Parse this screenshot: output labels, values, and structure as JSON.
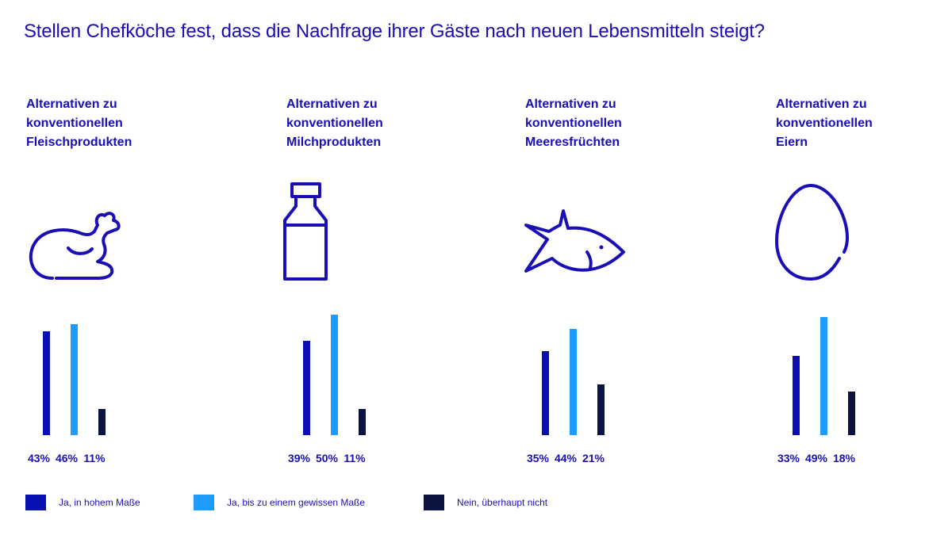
{
  "title": "Stellen Chefköche fest, dass die Nachfrage ihrer Gäste nach neuen Lebensmitteln steigt?",
  "colors": {
    "high": "#0a0fb4",
    "some": "#1e9bff",
    "none": "#0b1440",
    "icon": "#1a0fb4"
  },
  "legend": [
    {
      "label": "Ja, in hohem Maße",
      "color_key": "high"
    },
    {
      "label": "Ja, bis zu einem gewissen Maße",
      "color_key": "some"
    },
    {
      "label": "Nein, überhaupt nicht",
      "color_key": "none"
    }
  ],
  "chart_data": {
    "type": "bar",
    "title": "Stellen Chefköche fest, dass die Nachfrage ihrer Gäste nach neuen Lebensmitteln steigt?",
    "xlabel": "",
    "ylabel": "",
    "ylim": [
      0,
      50
    ],
    "grid": false,
    "legend_position": "bottom",
    "categories": [
      "Alternativen zu konventionellen Fleischprodukten",
      "Alternativen zu konventionellen Milchprodukten",
      "Alternativen zu konventionellen Meeresfrüchten",
      "Alternativen zu konventionellen Eiern"
    ],
    "series": [
      {
        "name": "Ja, in hohem Maße",
        "values": [
          43,
          39,
          35,
          33
        ]
      },
      {
        "name": "Ja, bis zu einem gewissen Maße",
        "values": [
          46,
          50,
          44,
          49
        ]
      },
      {
        "name": "Nein, überhaupt nicht",
        "values": [
          11,
          11,
          21,
          18
        ]
      }
    ],
    "value_labels": [
      [
        "43%",
        "46%",
        "11%"
      ],
      [
        "39%",
        "50%",
        "11%"
      ],
      [
        "35%",
        "44%",
        "21%"
      ],
      [
        "33%",
        "49%",
        "18%"
      ]
    ],
    "groups": [
      {
        "title": "Alternativen zu\nkonventionellen\nFleischprodukten",
        "icon": "chicken-icon"
      },
      {
        "title": "Alternativen zu\nkonventionellen\nMilchprodukten",
        "icon": "milk-bottle-icon"
      },
      {
        "title": "Alternativen zu\nkonventionellen\nMeeresfrüchten",
        "icon": "fish-icon"
      },
      {
        "title": "Alternativen zu\nkonventionellen\nEiern",
        "icon": "egg-icon"
      }
    ]
  }
}
